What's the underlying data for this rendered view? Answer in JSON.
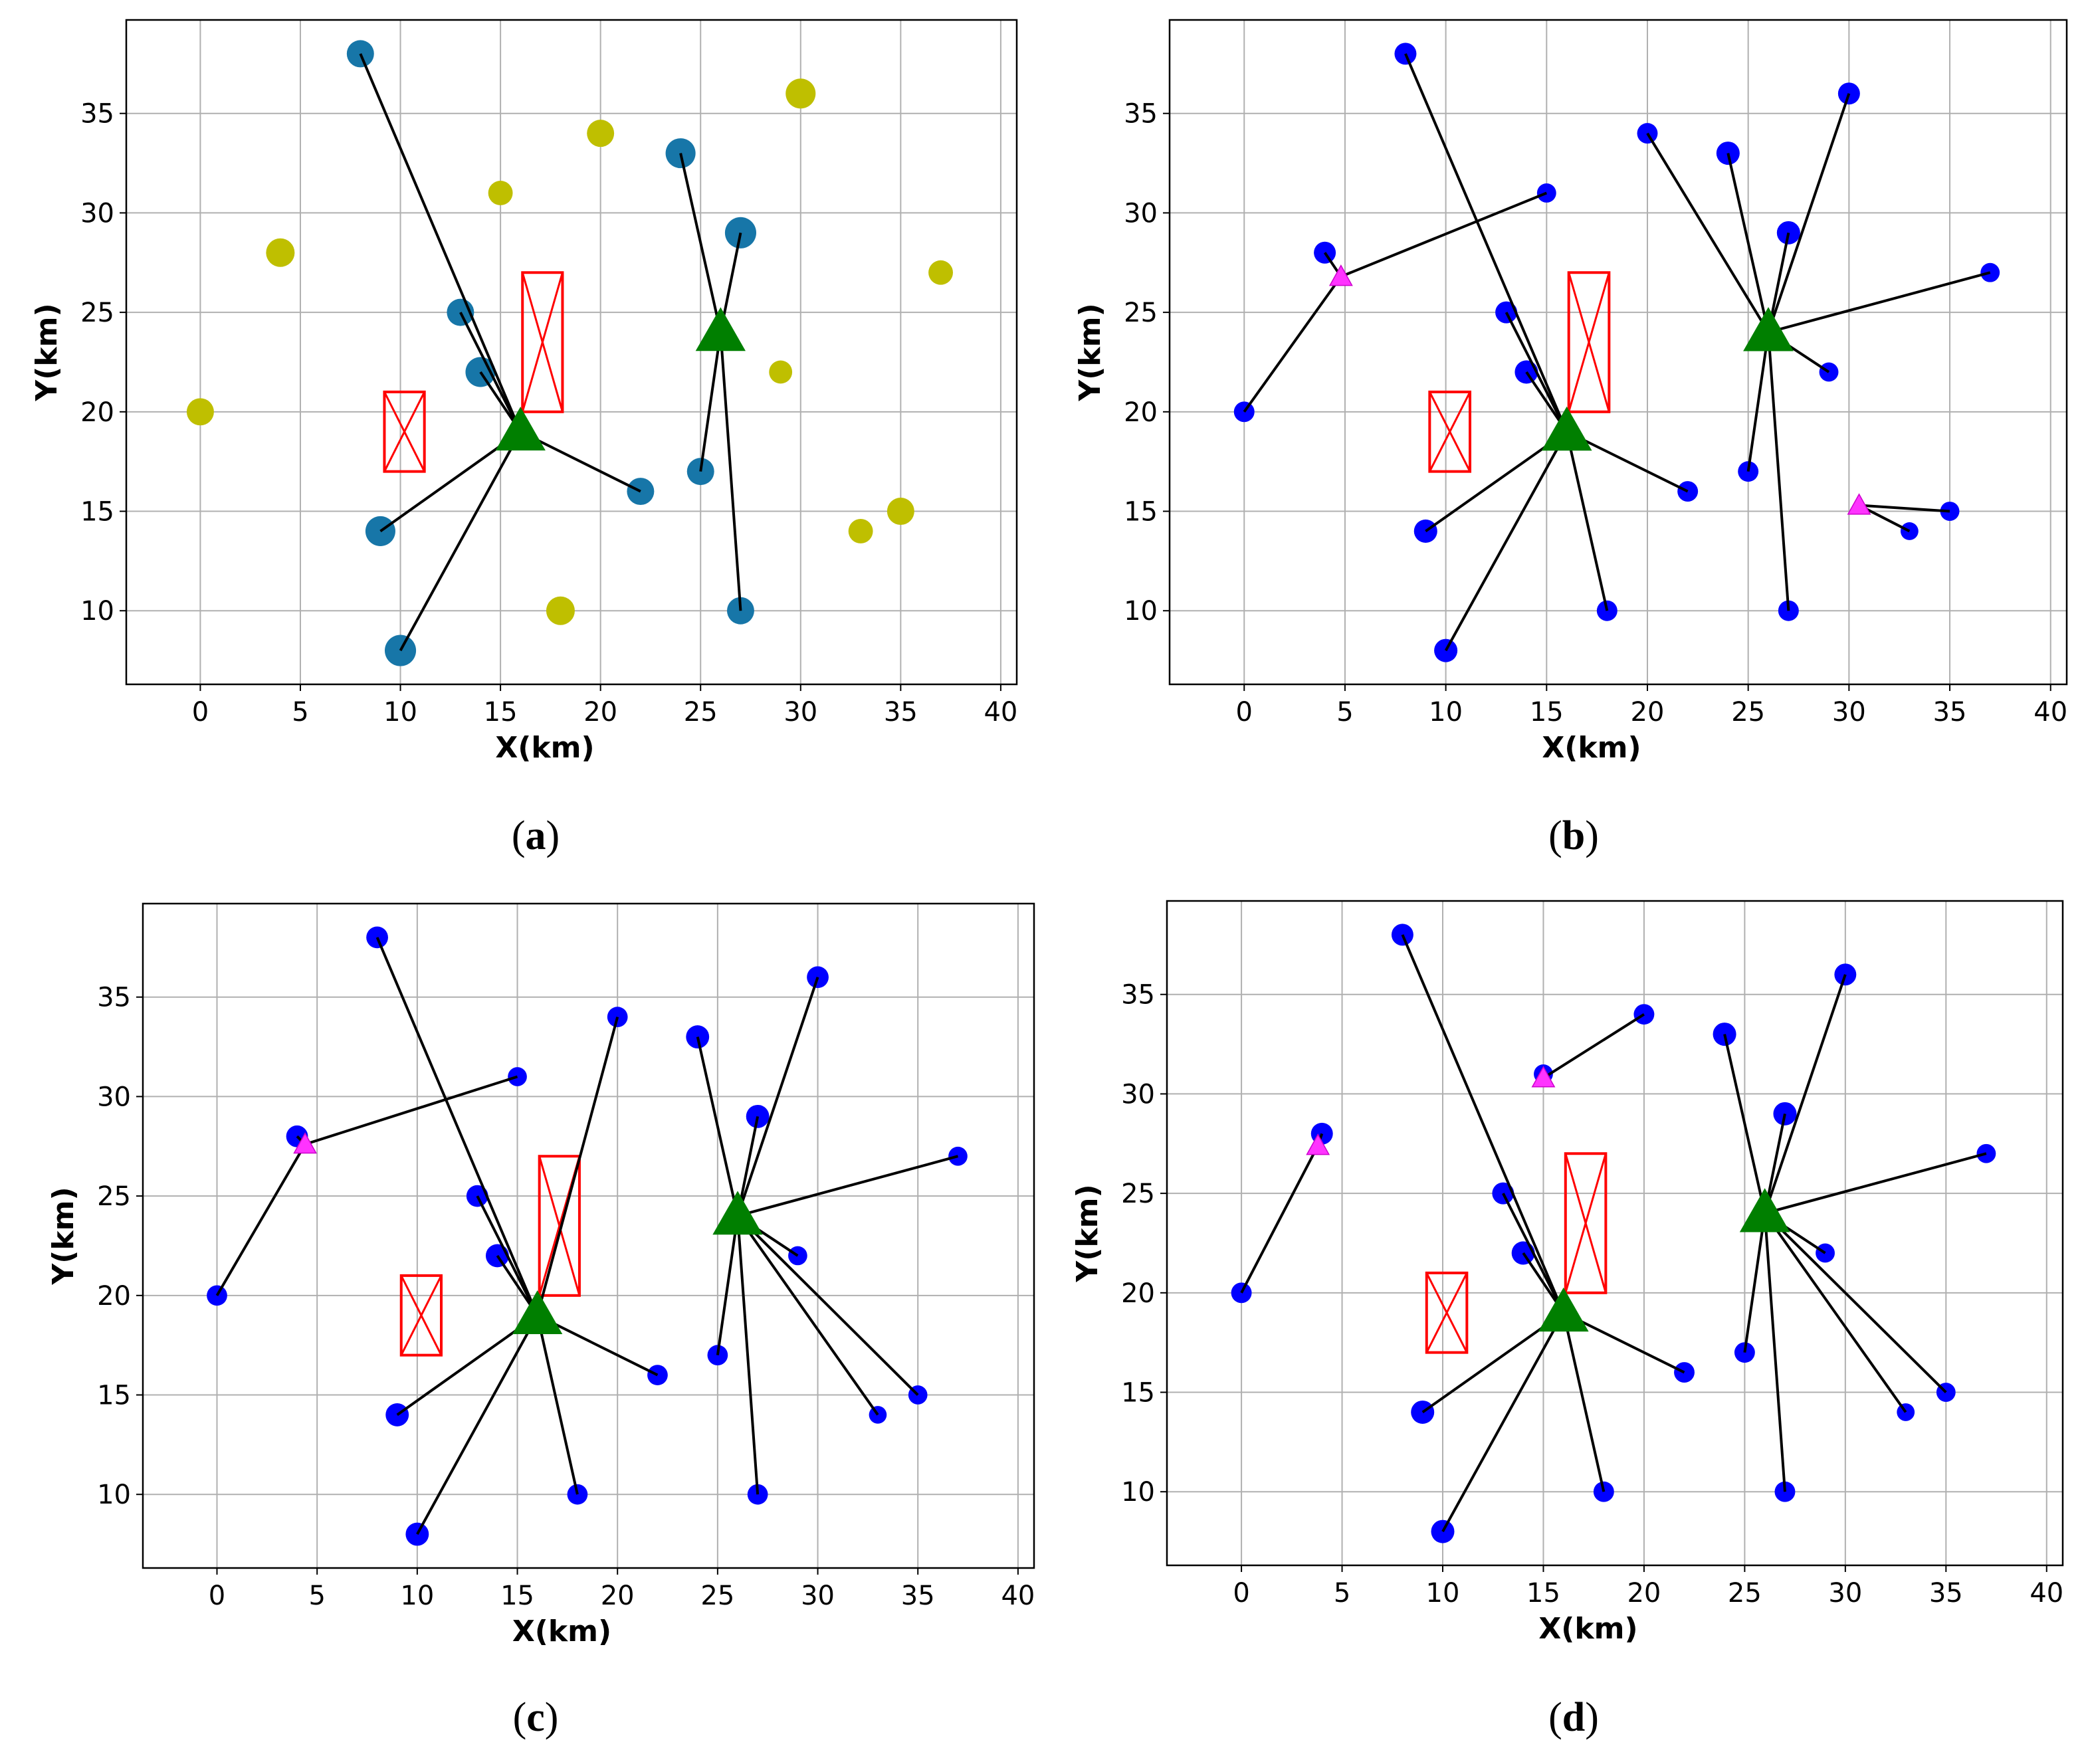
{
  "figure": {
    "colors": {
      "cluster_node": "#1f77b4",
      "cluster_node_a": "#1776a8",
      "candidate_node": "#bfbf00",
      "node_blue": "#0000ff",
      "hub": "#007f00",
      "relay": "#ff33ff",
      "link": "#000000",
      "obstacle": "#ff0000",
      "grid": "#b0b0b0"
    }
  },
  "chart_data": [
    {
      "panel": "a",
      "caption_open": "(",
      "caption_letter": "a",
      "caption_close": ")",
      "type": "scatter",
      "xlabel": "X(km)",
      "ylabel": "Y(km)",
      "xlim": [
        -3.7,
        40.8
      ],
      "ylim": [
        6.3,
        39.7
      ],
      "xticks": [
        "0",
        "5",
        "10",
        "15",
        "20",
        "25",
        "30",
        "35",
        "40"
      ],
      "yticks": [
        "10",
        "15",
        "20",
        "25",
        "30",
        "35"
      ],
      "grid": true,
      "obstacles": [
        {
          "x0": 9.2,
          "x1": 11.2,
          "y0": 17,
          "y1": 21
        },
        {
          "x0": 16.1,
          "x1": 18.1,
          "y0": 20,
          "y1": 27
        }
      ],
      "hubs": [
        {
          "x": 16,
          "y": 19,
          "color": "hub"
        },
        {
          "x": 26,
          "y": 24,
          "color": "hub"
        }
      ],
      "points": [
        {
          "x": 8,
          "y": 38,
          "color": "cluster_node_a",
          "r": 1.0
        },
        {
          "x": 13,
          "y": 25,
          "color": "cluster_node_a",
          "r": 1.0
        },
        {
          "x": 14,
          "y": 22,
          "color": "cluster_node_a",
          "r": 1.1
        },
        {
          "x": 9,
          "y": 14,
          "color": "cluster_node_a",
          "r": 1.1
        },
        {
          "x": 10,
          "y": 8,
          "color": "cluster_node_a",
          "r": 1.15
        },
        {
          "x": 22,
          "y": 16,
          "color": "cluster_node_a",
          "r": 1.0
        },
        {
          "x": 24,
          "y": 33,
          "color": "cluster_node_a",
          "r": 1.1
        },
        {
          "x": 27,
          "y": 29,
          "color": "cluster_node_a",
          "r": 1.15
        },
        {
          "x": 25,
          "y": 17,
          "color": "cluster_node_a",
          "r": 1.0
        },
        {
          "x": 27,
          "y": 10,
          "color": "cluster_node_a",
          "r": 1.0
        },
        {
          "x": 0,
          "y": 20,
          "color": "candidate_node",
          "r": 1.0
        },
        {
          "x": 4,
          "y": 28,
          "color": "candidate_node",
          "r": 1.05
        },
        {
          "x": 15,
          "y": 31,
          "color": "candidate_node",
          "r": 0.9
        },
        {
          "x": 20,
          "y": 34,
          "color": "candidate_node",
          "r": 1.0
        },
        {
          "x": 30,
          "y": 36,
          "color": "candidate_node",
          "r": 1.1
        },
        {
          "x": 37,
          "y": 27,
          "color": "candidate_node",
          "r": 0.9
        },
        {
          "x": 29,
          "y": 22,
          "color": "candidate_node",
          "r": 0.85
        },
        {
          "x": 33,
          "y": 14,
          "color": "candidate_node",
          "r": 0.9
        },
        {
          "x": 35,
          "y": 15,
          "color": "candidate_node",
          "r": 1.0
        },
        {
          "x": 18,
          "y": 10,
          "color": "candidate_node",
          "r": 1.05
        }
      ],
      "links": [
        [
          8,
          38,
          16,
          19
        ],
        [
          13,
          25,
          16,
          19
        ],
        [
          14,
          22,
          16,
          19
        ],
        [
          9,
          14,
          16,
          19
        ],
        [
          10,
          8,
          16,
          19
        ],
        [
          22,
          16,
          16,
          19
        ],
        [
          24,
          33,
          26,
          24
        ],
        [
          27,
          29,
          26,
          24
        ],
        [
          25,
          17,
          26,
          24
        ],
        [
          27,
          10,
          26,
          24
        ]
      ],
      "relays": []
    },
    {
      "panel": "b",
      "caption_open": "(",
      "caption_letter": "b",
      "caption_close": ")",
      "type": "scatter",
      "xlabel": "X(km)",
      "ylabel": "Y(km)",
      "xlim": [
        -3.7,
        40.8
      ],
      "ylim": [
        6.3,
        39.7
      ],
      "xticks": [
        "0",
        "5",
        "10",
        "15",
        "20",
        "25",
        "30",
        "35",
        "40"
      ],
      "yticks": [
        "10",
        "15",
        "20",
        "25",
        "30",
        "35"
      ],
      "grid": true,
      "obstacles": [
        {
          "x0": 9.2,
          "x1": 11.2,
          "y0": 17,
          "y1": 21
        },
        {
          "x0": 16.1,
          "x1": 18.1,
          "y0": 20,
          "y1": 27
        }
      ],
      "hubs": [
        {
          "x": 16,
          "y": 19,
          "color": "hub"
        },
        {
          "x": 26,
          "y": 24,
          "color": "hub"
        }
      ],
      "points": [
        {
          "x": 8,
          "y": 38,
          "color": "node_blue",
          "r": 0.8
        },
        {
          "x": 15,
          "y": 31,
          "color": "node_blue",
          "r": 0.7
        },
        {
          "x": 4,
          "y": 28,
          "color": "node_blue",
          "r": 0.8
        },
        {
          "x": 0,
          "y": 20,
          "color": "node_blue",
          "r": 0.75
        },
        {
          "x": 13,
          "y": 25,
          "color": "node_blue",
          "r": 0.8
        },
        {
          "x": 14,
          "y": 22,
          "color": "node_blue",
          "r": 0.85
        },
        {
          "x": 9,
          "y": 14,
          "color": "node_blue",
          "r": 0.85
        },
        {
          "x": 10,
          "y": 8,
          "color": "node_blue",
          "r": 0.85
        },
        {
          "x": 18,
          "y": 10,
          "color": "node_blue",
          "r": 0.75
        },
        {
          "x": 22,
          "y": 16,
          "color": "node_blue",
          "r": 0.75
        },
        {
          "x": 20,
          "y": 34,
          "color": "node_blue",
          "r": 0.75
        },
        {
          "x": 24,
          "y": 33,
          "color": "node_blue",
          "r": 0.85
        },
        {
          "x": 27,
          "y": 29,
          "color": "node_blue",
          "r": 0.85
        },
        {
          "x": 30,
          "y": 36,
          "color": "node_blue",
          "r": 0.8
        },
        {
          "x": 37,
          "y": 27,
          "color": "node_blue",
          "r": 0.7
        },
        {
          "x": 29,
          "y": 22,
          "color": "node_blue",
          "r": 0.7
        },
        {
          "x": 25,
          "y": 17,
          "color": "node_blue",
          "r": 0.75
        },
        {
          "x": 27,
          "y": 10,
          "color": "node_blue",
          "r": 0.75
        },
        {
          "x": 33,
          "y": 14,
          "color": "node_blue",
          "r": 0.65
        },
        {
          "x": 35,
          "y": 15,
          "color": "node_blue",
          "r": 0.7
        }
      ],
      "links": [
        [
          8,
          38,
          16,
          19
        ],
        [
          13,
          25,
          16,
          19
        ],
        [
          14,
          22,
          16,
          19
        ],
        [
          9,
          14,
          16,
          19
        ],
        [
          10,
          8,
          16,
          19
        ],
        [
          18,
          10,
          16,
          19
        ],
        [
          22,
          16,
          16,
          19
        ],
        [
          20,
          34,
          26,
          24
        ],
        [
          24,
          33,
          26,
          24
        ],
        [
          27,
          29,
          26,
          24
        ],
        [
          30,
          36,
          26,
          24
        ],
        [
          37,
          27,
          26,
          24
        ],
        [
          29,
          22,
          26,
          24
        ],
        [
          25,
          17,
          26,
          24
        ],
        [
          27,
          10,
          26,
          24
        ],
        [
          15,
          31,
          4.8,
          26.8
        ],
        [
          4,
          28,
          4.8,
          26.8
        ],
        [
          0,
          20,
          4.8,
          26.8
        ],
        [
          33,
          14,
          30.5,
          15.3
        ],
        [
          35,
          15,
          30.5,
          15.3
        ]
      ],
      "relays": [
        {
          "x": 4.8,
          "y": 26.8
        },
        {
          "x": 30.5,
          "y": 15.3
        }
      ]
    },
    {
      "panel": "c",
      "caption_open": "(",
      "caption_letter": "c",
      "caption_close": ")",
      "type": "scatter",
      "xlabel": "X(km)",
      "ylabel": "Y(km)",
      "xlim": [
        -3.7,
        40.8
      ],
      "ylim": [
        6.3,
        39.7
      ],
      "xticks": [
        "0",
        "5",
        "10",
        "15",
        "20",
        "25",
        "30",
        "35",
        "40"
      ],
      "yticks": [
        "10",
        "15",
        "20",
        "25",
        "30",
        "35"
      ],
      "grid": true,
      "obstacles": [
        {
          "x0": 9.2,
          "x1": 11.2,
          "y0": 17,
          "y1": 21
        },
        {
          "x0": 16.1,
          "x1": 18.1,
          "y0": 20,
          "y1": 27
        }
      ],
      "hubs": [
        {
          "x": 16,
          "y": 19,
          "color": "hub"
        },
        {
          "x": 26,
          "y": 24,
          "color": "hub"
        }
      ],
      "points": [
        {
          "x": 8,
          "y": 38,
          "color": "node_blue",
          "r": 0.8
        },
        {
          "x": 15,
          "y": 31,
          "color": "node_blue",
          "r": 0.7
        },
        {
          "x": 4,
          "y": 28,
          "color": "node_blue",
          "r": 0.8
        },
        {
          "x": 0,
          "y": 20,
          "color": "node_blue",
          "r": 0.75
        },
        {
          "x": 13,
          "y": 25,
          "color": "node_blue",
          "r": 0.8
        },
        {
          "x": 14,
          "y": 22,
          "color": "node_blue",
          "r": 0.85
        },
        {
          "x": 9,
          "y": 14,
          "color": "node_blue",
          "r": 0.85
        },
        {
          "x": 10,
          "y": 8,
          "color": "node_blue",
          "r": 0.85
        },
        {
          "x": 18,
          "y": 10,
          "color": "node_blue",
          "r": 0.75
        },
        {
          "x": 22,
          "y": 16,
          "color": "node_blue",
          "r": 0.75
        },
        {
          "x": 20,
          "y": 34,
          "color": "node_blue",
          "r": 0.75
        },
        {
          "x": 24,
          "y": 33,
          "color": "node_blue",
          "r": 0.85
        },
        {
          "x": 27,
          "y": 29,
          "color": "node_blue",
          "r": 0.85
        },
        {
          "x": 30,
          "y": 36,
          "color": "node_blue",
          "r": 0.8
        },
        {
          "x": 37,
          "y": 27,
          "color": "node_blue",
          "r": 0.7
        },
        {
          "x": 29,
          "y": 22,
          "color": "node_blue",
          "r": 0.7
        },
        {
          "x": 25,
          "y": 17,
          "color": "node_blue",
          "r": 0.75
        },
        {
          "x": 27,
          "y": 10,
          "color": "node_blue",
          "r": 0.75
        },
        {
          "x": 33,
          "y": 14,
          "color": "node_blue",
          "r": 0.65
        },
        {
          "x": 35,
          "y": 15,
          "color": "node_blue",
          "r": 0.7
        }
      ],
      "links": [
        [
          8,
          38,
          16,
          19
        ],
        [
          13,
          25,
          16,
          19
        ],
        [
          14,
          22,
          16,
          19
        ],
        [
          9,
          14,
          16,
          19
        ],
        [
          10,
          8,
          16,
          19
        ],
        [
          18,
          10,
          16,
          19
        ],
        [
          22,
          16,
          16,
          19
        ],
        [
          20,
          34,
          16,
          19
        ],
        [
          24,
          33,
          26,
          24
        ],
        [
          27,
          29,
          26,
          24
        ],
        [
          30,
          36,
          26,
          24
        ],
        [
          37,
          27,
          26,
          24
        ],
        [
          29,
          22,
          26,
          24
        ],
        [
          25,
          17,
          26,
          24
        ],
        [
          27,
          10,
          26,
          24
        ],
        [
          33,
          14,
          26,
          24
        ],
        [
          35,
          15,
          26,
          24
        ],
        [
          15,
          31,
          4.4,
          27.6
        ],
        [
          4,
          28,
          4.4,
          27.6
        ],
        [
          0,
          20,
          4.4,
          27.6
        ]
      ],
      "relays": [
        {
          "x": 4.4,
          "y": 27.6
        }
      ]
    },
    {
      "panel": "d",
      "caption_open": "(",
      "caption_letter": "d",
      "caption_close": ")",
      "type": "scatter",
      "xlabel": "X(km)",
      "ylabel": "Y(km)",
      "xlim": [
        -3.7,
        40.8
      ],
      "ylim": [
        6.3,
        39.7
      ],
      "xticks": [
        "0",
        "5",
        "10",
        "15",
        "20",
        "25",
        "30",
        "35",
        "40"
      ],
      "yticks": [
        "10",
        "15",
        "20",
        "25",
        "30",
        "35"
      ],
      "grid": true,
      "obstacles": [
        {
          "x0": 9.2,
          "x1": 11.2,
          "y0": 17,
          "y1": 21
        },
        {
          "x0": 16.1,
          "x1": 18.1,
          "y0": 20,
          "y1": 27
        }
      ],
      "hubs": [
        {
          "x": 16,
          "y": 19,
          "color": "hub"
        },
        {
          "x": 26,
          "y": 24,
          "color": "hub"
        }
      ],
      "points": [
        {
          "x": 8,
          "y": 38,
          "color": "node_blue",
          "r": 0.8
        },
        {
          "x": 15,
          "y": 31,
          "color": "node_blue",
          "r": 0.7
        },
        {
          "x": 4,
          "y": 28,
          "color": "node_blue",
          "r": 0.8
        },
        {
          "x": 0,
          "y": 20,
          "color": "node_blue",
          "r": 0.75
        },
        {
          "x": 13,
          "y": 25,
          "color": "node_blue",
          "r": 0.8
        },
        {
          "x": 14,
          "y": 22,
          "color": "node_blue",
          "r": 0.85
        },
        {
          "x": 9,
          "y": 14,
          "color": "node_blue",
          "r": 0.85
        },
        {
          "x": 10,
          "y": 8,
          "color": "node_blue",
          "r": 0.85
        },
        {
          "x": 18,
          "y": 10,
          "color": "node_blue",
          "r": 0.75
        },
        {
          "x": 22,
          "y": 16,
          "color": "node_blue",
          "r": 0.75
        },
        {
          "x": 20,
          "y": 34,
          "color": "node_blue",
          "r": 0.75
        },
        {
          "x": 24,
          "y": 33,
          "color": "node_blue",
          "r": 0.85
        },
        {
          "x": 27,
          "y": 29,
          "color": "node_blue",
          "r": 0.85
        },
        {
          "x": 30,
          "y": 36,
          "color": "node_blue",
          "r": 0.8
        },
        {
          "x": 37,
          "y": 27,
          "color": "node_blue",
          "r": 0.7
        },
        {
          "x": 29,
          "y": 22,
          "color": "node_blue",
          "r": 0.7
        },
        {
          "x": 25,
          "y": 17,
          "color": "node_blue",
          "r": 0.75
        },
        {
          "x": 27,
          "y": 10,
          "color": "node_blue",
          "r": 0.75
        },
        {
          "x": 33,
          "y": 14,
          "color": "node_blue",
          "r": 0.65
        },
        {
          "x": 35,
          "y": 15,
          "color": "node_blue",
          "r": 0.7
        }
      ],
      "links": [
        [
          8,
          38,
          16,
          19
        ],
        [
          13,
          25,
          16,
          19
        ],
        [
          14,
          22,
          16,
          19
        ],
        [
          9,
          14,
          16,
          19
        ],
        [
          10,
          8,
          16,
          19
        ],
        [
          18,
          10,
          16,
          19
        ],
        [
          22,
          16,
          16,
          19
        ],
        [
          24,
          33,
          26,
          24
        ],
        [
          27,
          29,
          26,
          24
        ],
        [
          30,
          36,
          26,
          24
        ],
        [
          37,
          27,
          26,
          24
        ],
        [
          29,
          22,
          26,
          24
        ],
        [
          25,
          17,
          26,
          24
        ],
        [
          27,
          10,
          26,
          24
        ],
        [
          33,
          14,
          26,
          24
        ],
        [
          35,
          15,
          26,
          24
        ],
        [
          20,
          34,
          15,
          30.8
        ],
        [
          4,
          28,
          3.8,
          27.4
        ],
        [
          0,
          20,
          3.8,
          27.4
        ]
      ],
      "relays": [
        {
          "x": 15,
          "y": 30.8
        },
        {
          "x": 3.8,
          "y": 27.4
        }
      ]
    }
  ]
}
